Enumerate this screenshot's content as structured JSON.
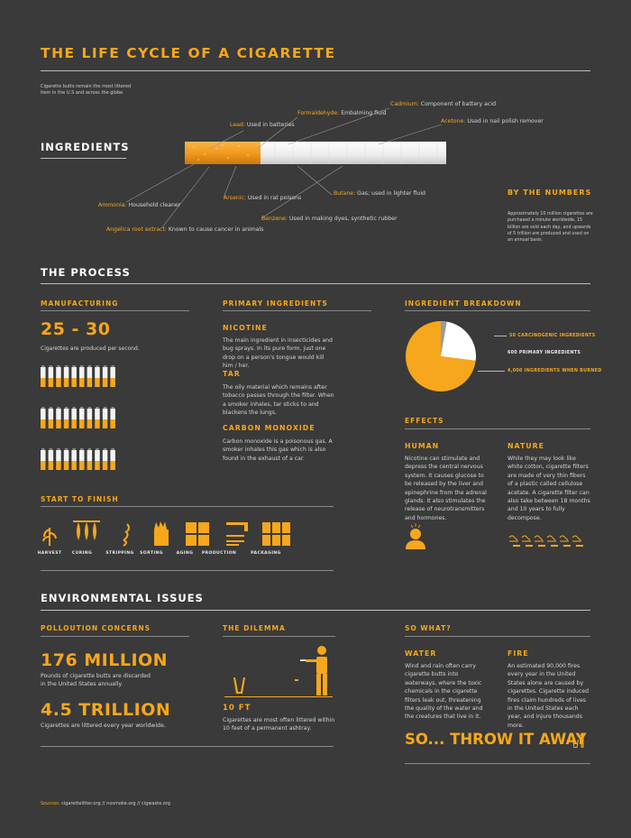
{
  "header": {
    "title": "THE LIFE CYCLE OF A CIGARETTE",
    "intro": "Cigarette butts remain the most littered item in the U.S and across the globe."
  },
  "ingredients": {
    "heading": "INGREDIENTS",
    "items": [
      {
        "key": "Cadmium:",
        "text": "Component of battery acid"
      },
      {
        "key": "Formaldehyde:",
        "text": "Embalming fluid"
      },
      {
        "key": "Acetone:",
        "text": "Used in nail polish remover"
      },
      {
        "key": "Lead:",
        "text": "Used in batteries"
      },
      {
        "key": "Ammonia:",
        "text": "Household cleaner"
      },
      {
        "key": "Arsenic:",
        "text": "Used in rat poisons"
      },
      {
        "key": "Butane:",
        "text": "Gas; used in lighter fluid"
      },
      {
        "key": "Benzene:",
        "text": "Used in making dyes, synthetic rubber"
      },
      {
        "key": "Angelica root extract:",
        "text": "Known to cause cancer in animals"
      }
    ]
  },
  "by_the_numbers": {
    "heading": "BY THE NUMBERS",
    "text": "Approximately 10 million cigarettes are purchased a minute worldwide, 15 billion are sold each day, and upwards of 5 trillion are produced and used on an annual basis."
  },
  "process": {
    "heading": "THE PROCESS",
    "manufacturing": {
      "heading": "MANUFACTURING",
      "stat": "25 - 30",
      "stat_text": "Cigarettes are produced per second."
    },
    "primary": {
      "heading": "PRIMARY INGREDIENTS",
      "items": [
        {
          "title": "NICOTINE",
          "text": "The main ingredient in insecticides and bug sprays. In its pure form, just one drop on a person's tongue would kill him / her."
        },
        {
          "title": "TAR",
          "text": "The oily material which remains after tobacco passes through the filter. When a smoker inhales, tar sticks to and blackens the lungs."
        },
        {
          "title": "CARBON MONOXIDE",
          "text": "Carbon monoxide is a poisonous gas. A smoker inhales this gas which is also found in the exhaust of a car."
        }
      ]
    },
    "breakdown": {
      "heading": "INGREDIENT BREAKDOWN"
    },
    "start_to_finish": {
      "heading": "START TO FINISH",
      "steps": [
        "HARVEST",
        "CURING",
        "STRIPPING",
        "SORTING",
        "AGING",
        "PRODUCTION",
        "PACKAGING"
      ]
    },
    "effects": {
      "heading": "EFFECTS",
      "human": {
        "title": "HUMAN",
        "text": "Nicotine can stimulate and depress the central nervous system. It causes glucose to be released by the liver and epinephrine from the adrenal glands. It also stimulates the release of neurotransmitters and hormones."
      },
      "nature": {
        "title": "NATURE",
        "text": "While they may look like white cotton, cigarette filters are made of very thin fibers of a plastic called cellulose acetate. A cigarette filter can also take between 18 months and 10 years to fully decompose."
      }
    }
  },
  "chart_data": {
    "type": "pie",
    "categories": [
      "50 CARCINOGENIC INGREDIENTS",
      "600 PRIMARY INGREDIENTS",
      "4,000 INGREDIENTS WHEN BURNED"
    ],
    "values": [
      50,
      600,
      4000
    ],
    "colors": [
      "#9a9a9a",
      "#ffffff",
      "#f6a71c"
    ]
  },
  "environment": {
    "heading": "ENVIRONMENTAL ISSUES",
    "pollution": {
      "heading": "POLLOUTION CONCERNS",
      "stat1": "176 MILLION",
      "stat1_text": "Pounds of cigarette butts are discarded in the United States annually.",
      "stat2": "4.5 TRILLION",
      "stat2_text": "Cigarettes are littered every year worldwide."
    },
    "dilemma": {
      "heading": "THE DILEMMA",
      "distance": "10 FT",
      "text": "Cigarettes are most often littered within 10 feet of a permanent ashtray."
    },
    "so_what": {
      "heading": "SO WHAT?",
      "water": {
        "title": "WATER",
        "text": "Wind and rain often carry cigarette butts into waterways, where the toxic chemicals in the cigarette filters leak out, threatening the quality of the water and the creatures that live in it."
      },
      "fire": {
        "title": "FIRE",
        "text": "An estimated 90,000 fires every year in the United States alone are caused by cigarettes. Cigarette induced fires claim hundreds of lives in the United States each year, and injure thousands more."
      },
      "cta": "SO... THROW IT AWAY"
    }
  },
  "sources": {
    "label": "Sources:",
    "text": "cigarettelitter.org  //  nosmoke.org  //  cigwaste.org"
  },
  "colors": {
    "background": "#3a3a3a",
    "accent": "#f6a71c",
    "text": "#d4d4d4"
  }
}
